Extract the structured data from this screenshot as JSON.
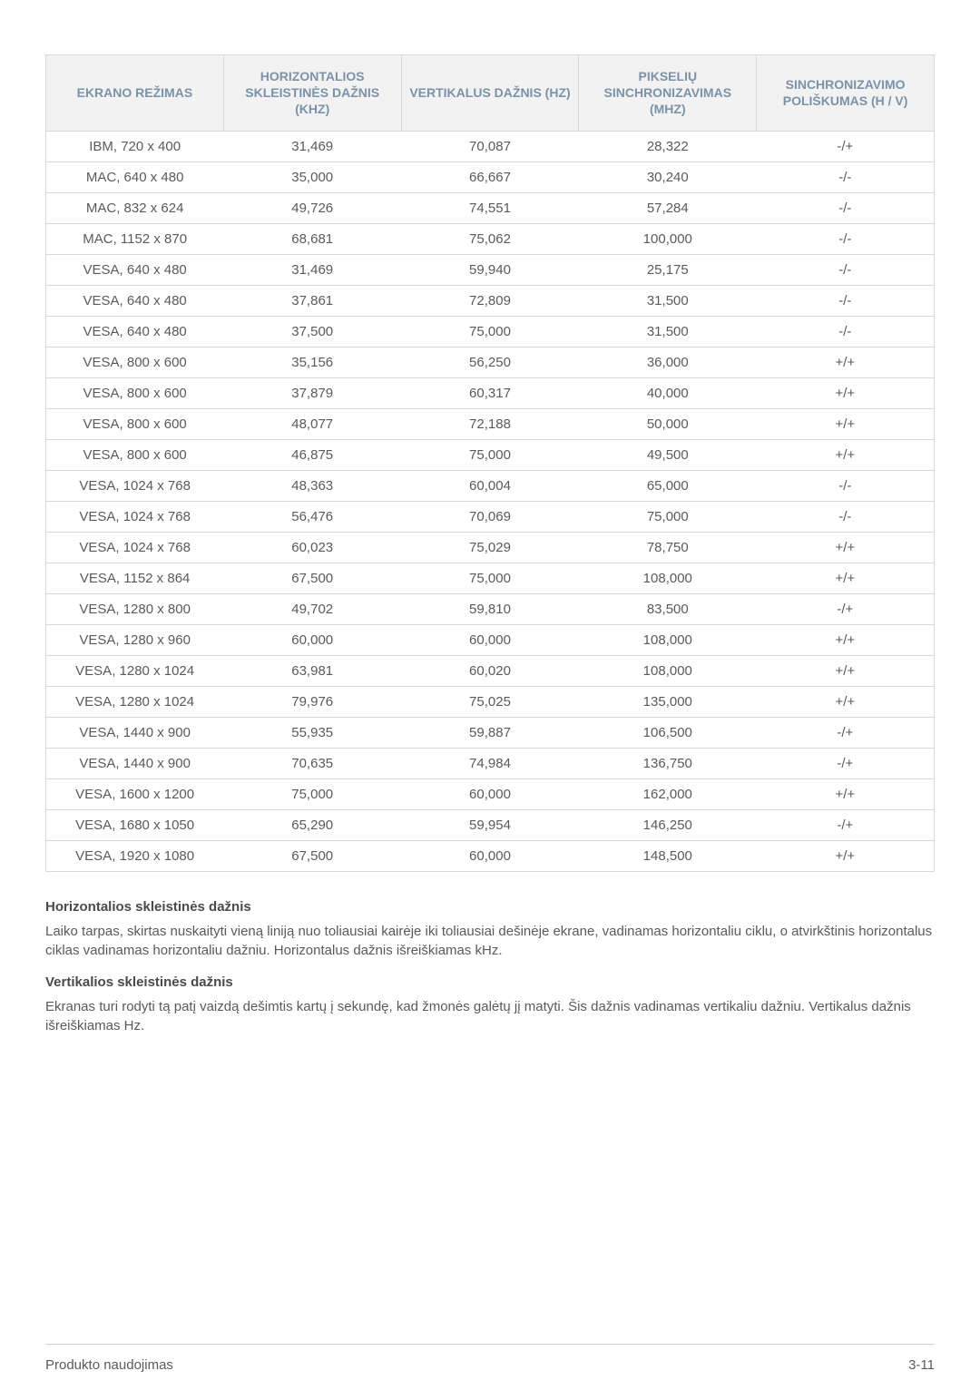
{
  "table": {
    "columns": [
      "EKRANO REŽIMAS",
      "HORIZONTALIOS SKLEISTINĖS DAŽNIS (KHZ)",
      "VERTIKALUS DAŽNIS (HZ)",
      "PIKSELIŲ SINCHRONIZAVIMAS (MHZ)",
      "SINCHRONIZAVIMO POLIŠKUMAS (H / V)"
    ],
    "header_color": "#7b92a8",
    "header_bg": "#f2f2f2",
    "border_color": "#d9d9d9",
    "text_color": "#5a5a5a",
    "rows": [
      [
        "IBM, 720 x 400",
        "31,469",
        "70,087",
        "28,322",
        "-/+"
      ],
      [
        "MAC, 640 x 480",
        "35,000",
        "66,667",
        "30,240",
        "-/-"
      ],
      [
        "MAC, 832 x 624",
        "49,726",
        "74,551",
        "57,284",
        "-/-"
      ],
      [
        "MAC, 1152 x 870",
        "68,681",
        "75,062",
        "100,000",
        "-/-"
      ],
      [
        "VESA, 640 x 480",
        "31,469",
        "59,940",
        "25,175",
        "-/-"
      ],
      [
        "VESA, 640 x 480",
        "37,861",
        "72,809",
        "31,500",
        "-/-"
      ],
      [
        "VESA, 640 x 480",
        "37,500",
        "75,000",
        "31,500",
        "-/-"
      ],
      [
        "VESA, 800 x 600",
        "35,156",
        "56,250",
        "36,000",
        "+/+"
      ],
      [
        "VESA, 800 x 600",
        "37,879",
        "60,317",
        "40,000",
        "+/+"
      ],
      [
        "VESA, 800 x 600",
        "48,077",
        "72,188",
        "50,000",
        "+/+"
      ],
      [
        "VESA, 800 x 600",
        "46,875",
        "75,000",
        "49,500",
        "+/+"
      ],
      [
        "VESA, 1024 x 768",
        "48,363",
        "60,004",
        "65,000",
        "-/-"
      ],
      [
        "VESA, 1024 x 768",
        "56,476",
        "70,069",
        "75,000",
        "-/-"
      ],
      [
        "VESA, 1024 x 768",
        "60,023",
        "75,029",
        "78,750",
        "+/+"
      ],
      [
        "VESA, 1152 x 864",
        "67,500",
        "75,000",
        "108,000",
        "+/+"
      ],
      [
        "VESA, 1280 x 800",
        "49,702",
        "59,810",
        "83,500",
        "-/+"
      ],
      [
        "VESA, 1280 x 960",
        "60,000",
        "60,000",
        "108,000",
        "+/+"
      ],
      [
        "VESA, 1280 x 1024",
        "63,981",
        "60,020",
        "108,000",
        "+/+"
      ],
      [
        "VESA, 1280 x 1024",
        "79,976",
        "75,025",
        "135,000",
        "+/+"
      ],
      [
        "VESA, 1440 x 900",
        "55,935",
        "59,887",
        "106,500",
        "-/+"
      ],
      [
        "VESA, 1440 x 900",
        "70,635",
        "74,984",
        "136,750",
        "-/+"
      ],
      [
        "VESA, 1600 x 1200",
        "75,000",
        "60,000",
        "162,000",
        "+/+"
      ],
      [
        "VESA, 1680 x 1050",
        "65,290",
        "59,954",
        "146,250",
        "-/+"
      ],
      [
        "VESA, 1920 x 1080",
        "67,500",
        "60,000",
        "148,500",
        "+/+"
      ]
    ]
  },
  "sections": [
    {
      "heading": "Horizontalios skleistinės dažnis",
      "body": "Laiko tarpas, skirtas nuskaityti vieną liniją nuo toliausiai kairėje iki toliausiai dešinėje ekrane, vadinamas horizontaliu ciklu, o atvirkštinis horizontalus ciklas vadinamas horizontaliu dažniu. Horizontalus dažnis išreiškiamas kHz."
    },
    {
      "heading": "Vertikalios skleistinės dažnis",
      "body": "Ekranas turi rodyti tą patį vaizdą dešimtis kartų į sekundę, kad žmonės galėtų jį matyti. Šis dažnis vadinamas vertikaliu dažniu. Vertikalus dažnis išreiškiamas Hz."
    }
  ],
  "footer": {
    "left": "Produkto naudojimas",
    "right": "3-11"
  }
}
